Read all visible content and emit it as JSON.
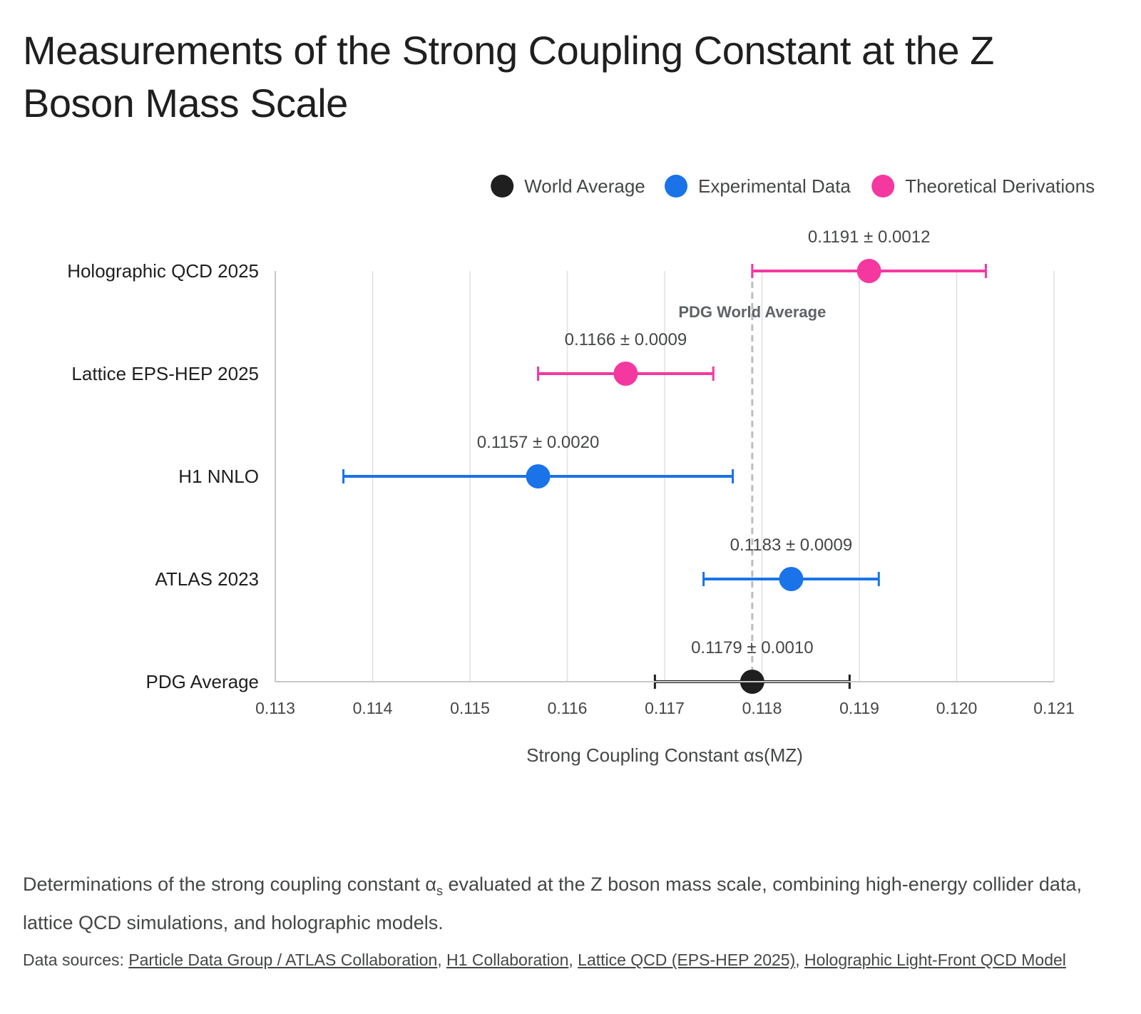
{
  "title": "Measurements of the Strong Coupling Constant at the Z Boson Mass Scale",
  "caption": {
    "before": "Determinations of the strong coupling constant α",
    "subscript": "s",
    "after": " evaluated at the Z boson mass scale, combining high-energy collider data, lattice QCD simulations, and holographic models."
  },
  "sources": {
    "prefix": "Data sources: ",
    "links": [
      "Particle Data Group / ATLAS Collaboration",
      "H1 Collaboration",
      "Lattice QCD (EPS-HEP 2025)",
      "Holographic Light-Front QCD Model"
    ],
    "separator": ", "
  },
  "chart_data": {
    "type": "scatter",
    "subtype": "error-bar dot plot",
    "xlabel": "Strong Coupling Constant αs(MZ)",
    "ylabel": "",
    "xlim": [
      0.113,
      0.121
    ],
    "xticks": [
      "0.113",
      "0.114",
      "0.115",
      "0.116",
      "0.117",
      "0.118",
      "0.119",
      "0.120",
      "0.121"
    ],
    "grid": "vertical",
    "legend_position": "top-right",
    "legend": [
      {
        "name": "World Average",
        "color": "#1f1f1f"
      },
      {
        "name": "Experimental Data",
        "color": "#1a73e8"
      },
      {
        "name": "Theoretical Derivations",
        "color": "#f538a0"
      }
    ],
    "reference_line": {
      "x": 0.1179,
      "label": "PDG World Average",
      "style": "dashed"
    },
    "points": [
      {
        "name": "Holographic QCD 2025",
        "value": 0.1191,
        "error": 0.0012,
        "group": "Theoretical Derivations",
        "label": "0.1191 ± 0.0012"
      },
      {
        "name": "Lattice EPS-HEP 2025",
        "value": 0.1166,
        "error": 0.0009,
        "group": "Theoretical Derivations",
        "label": "0.1166 ± 0.0009"
      },
      {
        "name": "H1 NNLO",
        "value": 0.1157,
        "error": 0.002,
        "group": "Experimental Data",
        "label": "0.1157 ± 0.0020"
      },
      {
        "name": "ATLAS 2023",
        "value": 0.1183,
        "error": 0.0009,
        "group": "Experimental Data",
        "label": "0.1183 ± 0.0009"
      },
      {
        "name": "PDG Average",
        "value": 0.1179,
        "error": 0.001,
        "group": "World Average",
        "label": "0.1179 ± 0.0010"
      }
    ]
  }
}
